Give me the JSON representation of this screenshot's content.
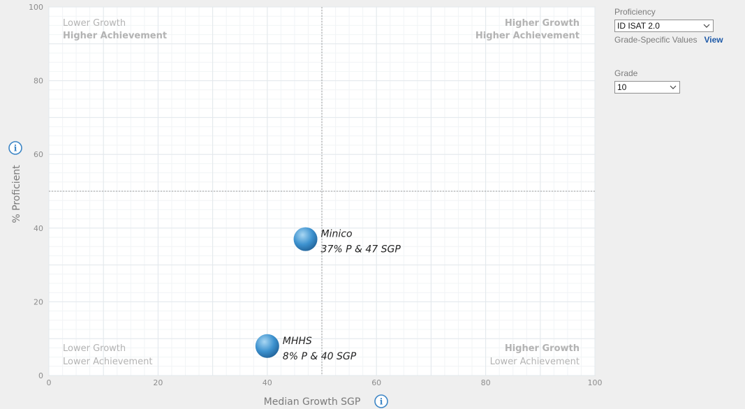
{
  "chart_data": {
    "type": "scatter",
    "title": "",
    "xlabel": "Median Growth SGP",
    "ylabel": "% Proficient",
    "xlim": [
      0,
      100
    ],
    "ylim": [
      0,
      100
    ],
    "xticks": [
      0,
      20,
      40,
      60,
      80,
      100
    ],
    "yticks": [
      0,
      20,
      40,
      60,
      80,
      100
    ],
    "grid": true,
    "reference_lines": {
      "x": 50,
      "y": 50
    },
    "points": [
      {
        "name": "Minico",
        "x": 47,
        "y": 37,
        "label": "37% P & 47 SGP"
      },
      {
        "name": "MHHS",
        "x": 40,
        "y": 8,
        "label": "8% P & 40 SGP"
      }
    ],
    "quadrants": {
      "top_left": [
        "Lower Growth",
        "Higher Achievement"
      ],
      "top_right": [
        "Higher Growth",
        "Higher Achievement"
      ],
      "bottom_left": [
        "Lower Growth",
        "Lower Achievement"
      ],
      "bottom_right": [
        "Higher Growth",
        "Lower Achievement"
      ]
    },
    "colors": {
      "bubble": "#3d92cf",
      "grid": "#e3e8ec",
      "reference": "#9a9a9a",
      "background": "#ffffff"
    }
  },
  "controls": {
    "proficiency_label": "Proficiency",
    "proficiency_value": "ID ISAT 2.0",
    "grade_specific_text": "Grade-Specific Values",
    "view_link": "View",
    "grade_label": "Grade",
    "grade_value": "10"
  },
  "icons": {
    "info": "i"
  }
}
